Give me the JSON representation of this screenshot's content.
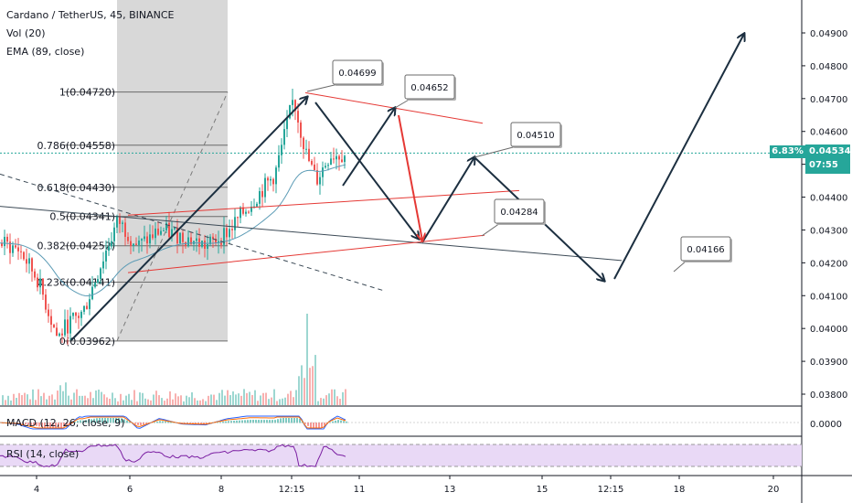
{
  "header": {
    "title": "Cardano / TetherUS, 45, BINANCE",
    "indicators": [
      "Vol (20)",
      "EMA (89, close)"
    ]
  },
  "price_axis": {
    "ticks": [
      "0.04900",
      "0.04800",
      "0.04700",
      "0.04600",
      "0.04500",
      "0.04400",
      "0.04300",
      "0.04200",
      "0.04100",
      "0.04000",
      "0.03900",
      "0.03800"
    ],
    "current_price": "0.04534",
    "change_badge": "6.83%",
    "countdown": "07:55"
  },
  "time_axis": {
    "labels": [
      "4",
      "6",
      "8",
      "12:15",
      "11",
      "13",
      "15",
      "12:15",
      "18",
      "20"
    ]
  },
  "macd": {
    "label": "MACD (12, 26, close, 9)",
    "value": "0.0000"
  },
  "rsi": {
    "label": "RSI (14, close)"
  },
  "fibonacci": [
    {
      "label": "1(0.04720)",
      "ratio": 1,
      "price": 0.0472
    },
    {
      "label": "0.786(0.04558)",
      "ratio": 0.786,
      "price": 0.04558
    },
    {
      "label": "0.618(0.04430)",
      "ratio": 0.618,
      "price": 0.0443
    },
    {
      "label": "0.5(0.04341)",
      "ratio": 0.5,
      "price": 0.04341
    },
    {
      "label": "0.382(0.04252)",
      "ratio": 0.382,
      "price": 0.04252
    },
    {
      "label": "0.236(0.04141)",
      "ratio": 0.236,
      "price": 0.04141
    },
    {
      "label": "0(0.03962)",
      "ratio": 0,
      "price": 0.03962
    }
  ],
  "callouts": [
    "0.04699",
    "0.04652",
    "0.04510",
    "0.04284",
    "0.04166"
  ],
  "colors": {
    "up": "#26a69a",
    "down": "#ef5350",
    "red_lines": "#e53935",
    "arrows": "#1c2f40",
    "fib_shade": "#d1d1d1",
    "rsi_band": "#e9d9f6",
    "rsi_line": "#7b1fa2",
    "ema": "#5b9bb5"
  },
  "chart_data": {
    "type": "candlestick",
    "title": "Cardano / TetherUS, 45, BINANCE",
    "timeframe": "45",
    "ylim": [
      0.0375,
      0.0495
    ],
    "y_ticks": [
      0.049,
      0.048,
      0.047,
      0.046,
      0.045,
      0.044,
      0.043,
      0.042,
      0.041,
      0.04,
      0.039,
      0.038
    ],
    "x_tick_labels": [
      "4",
      "6",
      "8",
      "12:15",
      "11",
      "13",
      "15",
      "12:15",
      "18",
      "20"
    ],
    "price_path_approx": [
      0.0426,
      0.0424,
      0.0415,
      0.0397,
      0.0401,
      0.0405,
      0.042,
      0.0433,
      0.0425,
      0.043,
      0.0428,
      0.0425,
      0.043,
      0.0437,
      0.0447,
      0.047,
      0.0453,
      0.0445,
      0.0453
    ],
    "current_price": 0.04534,
    "projection_prices": [
      0.04699,
      0.04652,
      0.0451,
      0.04284,
      0.04166
    ],
    "grid": true
  }
}
